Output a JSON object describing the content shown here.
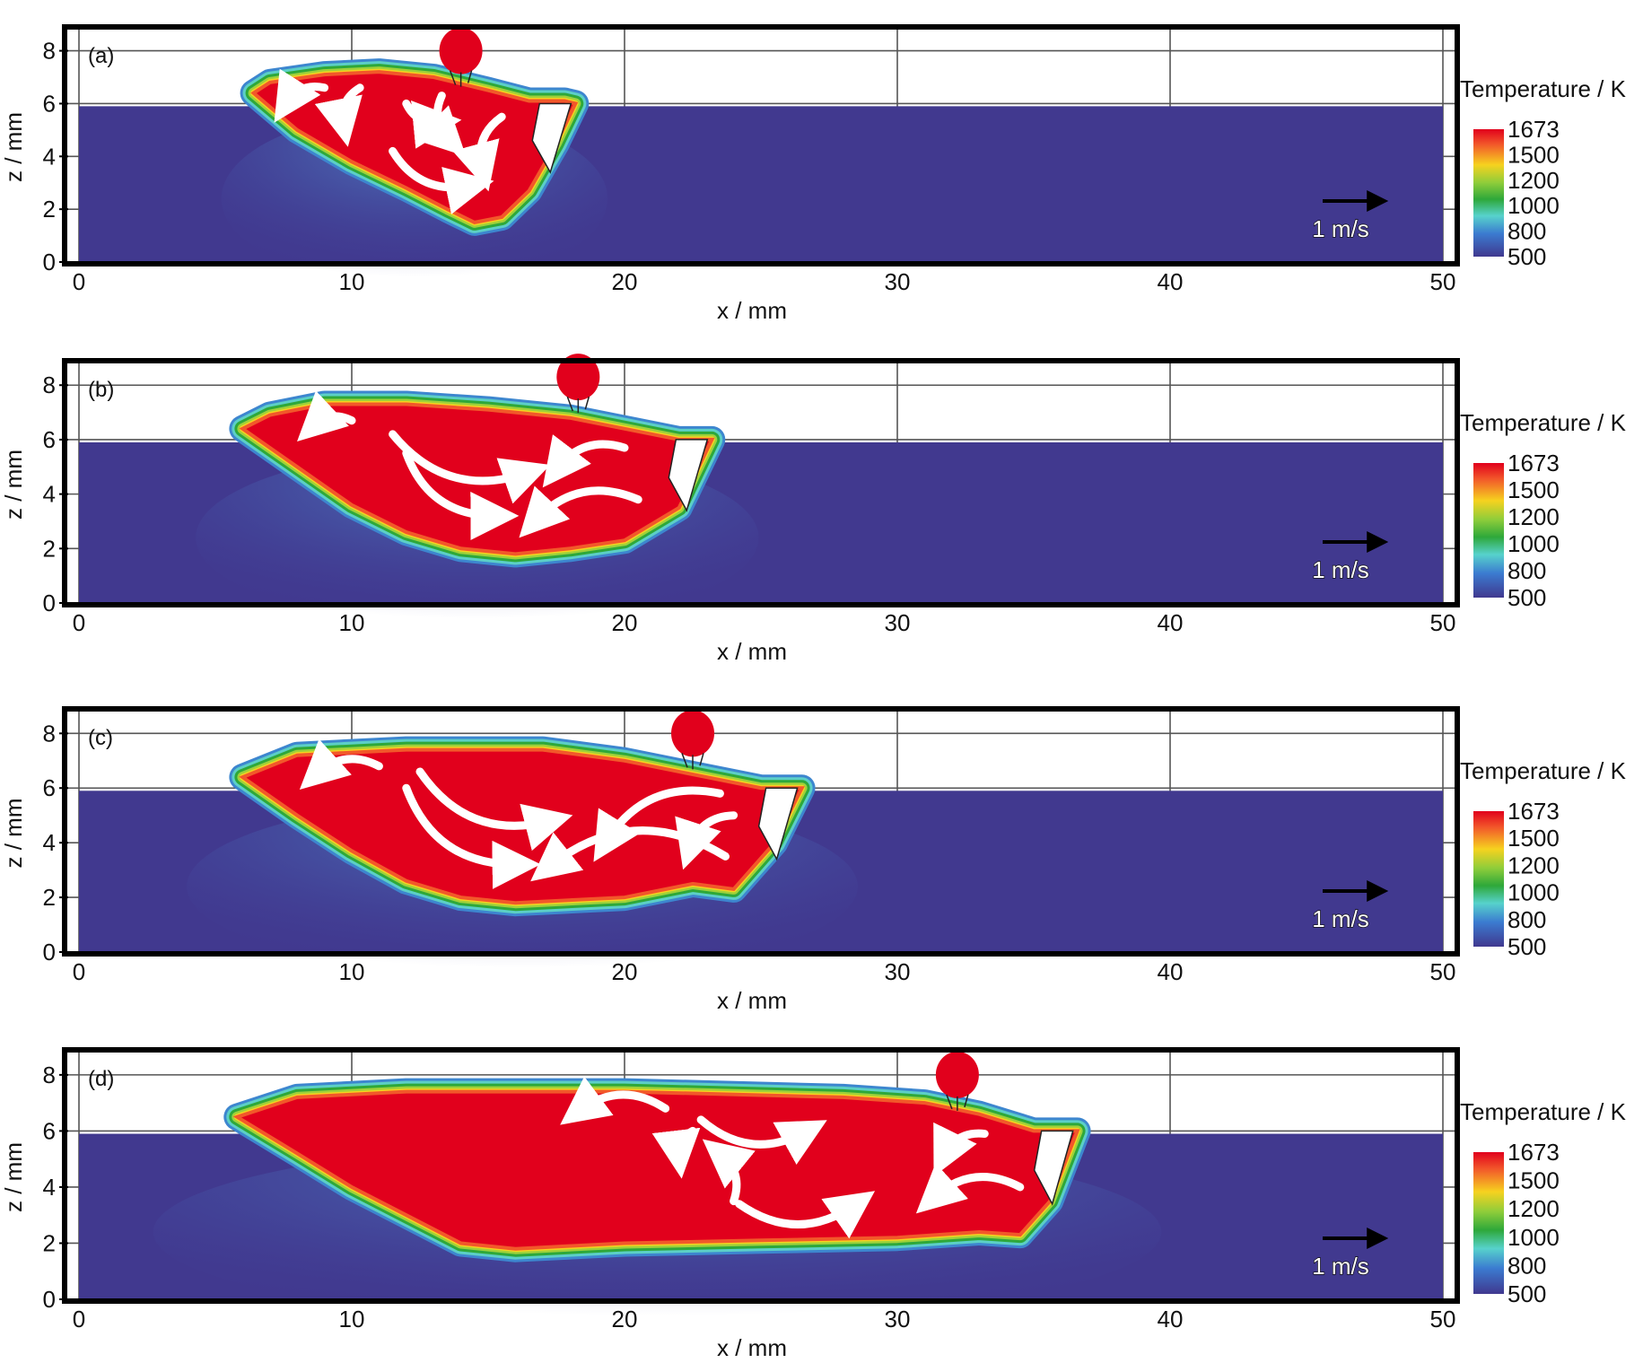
{
  "chart_data": [
    {
      "type": "heatmap",
      "panel_label": "(a)",
      "xlabel": "x / mm",
      "ylabel": "z / mm",
      "xlim": [
        0,
        50
      ],
      "ylim": [
        0,
        8.7
      ],
      "x_ticks": [
        "0",
        "10",
        "20",
        "30",
        "40",
        "50"
      ],
      "y_ticks": [
        "0",
        "2",
        "4",
        "6",
        "8"
      ],
      "grid": true,
      "colorbar": {
        "title": "Temperature / K",
        "ticks": [
          "1673",
          "1500",
          "1200",
          "1000",
          "800",
          "500"
        ]
      },
      "velocity_scale_label": "1 m/s",
      "substrate_level": 5.9,
      "pool_top": [
        [
          6.4,
          6.4
        ],
        [
          7,
          6.8
        ],
        [
          9,
          7.1
        ],
        [
          11,
          7.2
        ],
        [
          13,
          7.0
        ],
        [
          15,
          6.5
        ],
        [
          16.5,
          6.1
        ],
        [
          17.8,
          6.1
        ]
      ],
      "pool_bottom": [
        [
          6.4,
          6.4
        ],
        [
          8,
          5.0
        ],
        [
          10,
          3.8
        ],
        [
          12,
          2.8
        ],
        [
          13.5,
          2.0
        ],
        [
          14.5,
          1.5
        ],
        [
          15.5,
          1.7
        ],
        [
          16.5,
          2.7
        ],
        [
          17.5,
          4.5
        ],
        [
          18.2,
          6.0
        ]
      ],
      "droplet": {
        "x": 14.0,
        "z": 8.0
      },
      "arrows": [
        [
          [
            9,
            6.6
          ],
          [
            7.6,
            6.0
          ]
        ],
        [
          [
            10.3,
            6.6
          ],
          [
            9.7,
            5.2
          ]
        ],
        [
          [
            12,
            6.0
          ],
          [
            13.2,
            5.3
          ]
        ],
        [
          [
            13.3,
            6.3
          ],
          [
            13.6,
            4.6
          ]
        ],
        [
          [
            15.5,
            5.5
          ],
          [
            14.8,
            3.5
          ]
        ],
        [
          [
            11.5,
            4.2
          ],
          [
            14.4,
            2.9
          ]
        ]
      ]
    },
    {
      "type": "heatmap",
      "panel_label": "(b)",
      "xlabel": "x / mm",
      "ylabel": "z / mm",
      "xlim": [
        0,
        50
      ],
      "ylim": [
        0,
        8.7
      ],
      "x_ticks": [
        "0",
        "10",
        "20",
        "30",
        "40",
        "50"
      ],
      "y_ticks": [
        "0",
        "2",
        "4",
        "6",
        "8"
      ],
      "grid": true,
      "colorbar": {
        "title": "Temperature / K",
        "ticks": [
          "1673",
          "1500",
          "1200",
          "1000",
          "800",
          "500"
        ]
      },
      "velocity_scale_label": "1 m/s",
      "substrate_level": 5.9,
      "pool_top": [
        [
          6.0,
          6.4
        ],
        [
          7,
          6.9
        ],
        [
          9,
          7.3
        ],
        [
          12,
          7.3
        ],
        [
          15,
          7.1
        ],
        [
          18,
          6.8
        ],
        [
          20,
          6.4
        ],
        [
          22,
          6.0
        ],
        [
          23.2,
          6.0
        ]
      ],
      "pool_bottom": [
        [
          6.0,
          6.4
        ],
        [
          8,
          5.0
        ],
        [
          10,
          3.6
        ],
        [
          12,
          2.6
        ],
        [
          14,
          2.0
        ],
        [
          16,
          1.8
        ],
        [
          18,
          2.0
        ],
        [
          20,
          2.3
        ],
        [
          22,
          3.5
        ],
        [
          23.2,
          6.0
        ]
      ],
      "droplet": {
        "x": 18.3,
        "z": 8.3
      },
      "arrows": [
        [
          [
            10,
            6.7
          ],
          [
            8.6,
            6.5
          ]
        ],
        [
          [
            11.5,
            6.2
          ],
          [
            16.5,
            4.8
          ]
        ],
        [
          [
            12,
            5.5
          ],
          [
            15.3,
            3.2
          ]
        ],
        [
          [
            20,
            5.7
          ],
          [
            17.5,
            4.9
          ]
        ],
        [
          [
            20.5,
            3.8
          ],
          [
            16.7,
            3.0
          ]
        ]
      ]
    },
    {
      "type": "heatmap",
      "panel_label": "(c)",
      "xlabel": "x / mm",
      "ylabel": "z / mm",
      "xlim": [
        0,
        50
      ],
      "ylim": [
        0,
        8.7
      ],
      "x_ticks": [
        "0",
        "10",
        "20",
        "30",
        "40",
        "50"
      ],
      "y_ticks": [
        "0",
        "2",
        "4",
        "6",
        "8"
      ],
      "grid": true,
      "colorbar": {
        "title": "Temperature / K",
        "ticks": [
          "1673",
          "1500",
          "1200",
          "1000",
          "800",
          "500"
        ]
      },
      "velocity_scale_label": "1 m/s",
      "substrate_level": 5.9,
      "pool_top": [
        [
          6.0,
          6.4
        ],
        [
          8,
          7.2
        ],
        [
          12,
          7.4
        ],
        [
          17,
          7.4
        ],
        [
          20,
          7.0
        ],
        [
          23,
          6.4
        ],
        [
          25,
          6.0
        ],
        [
          26.5,
          6.0
        ]
      ],
      "pool_bottom": [
        [
          6.0,
          6.4
        ],
        [
          8,
          5.0
        ],
        [
          10,
          3.7
        ],
        [
          12,
          2.6
        ],
        [
          14,
          2.0
        ],
        [
          16,
          1.8
        ],
        [
          20,
          2.0
        ],
        [
          22.5,
          2.5
        ],
        [
          24,
          2.3
        ],
        [
          25.5,
          4.0
        ],
        [
          26.5,
          6.0
        ]
      ],
      "droplet": {
        "x": 22.5,
        "z": 8.0
      },
      "arrows": [
        [
          [
            11,
            6.8
          ],
          [
            8.7,
            6.5
          ]
        ],
        [
          [
            12.5,
            6.6
          ],
          [
            17.3,
            4.8
          ]
        ],
        [
          [
            12,
            6.0
          ],
          [
            16.1,
            3.2
          ]
        ],
        [
          [
            23.5,
            5.8
          ],
          [
            19.3,
            4.0
          ]
        ],
        [
          [
            24,
            5.0
          ],
          [
            22.4,
            3.8
          ]
        ],
        [
          [
            23.7,
            3.5
          ],
          [
            17.2,
            3.1
          ]
        ]
      ]
    },
    {
      "type": "heatmap",
      "panel_label": "(d)",
      "xlabel": "x / mm",
      "ylabel": "z / mm",
      "xlim": [
        0,
        50
      ],
      "ylim": [
        0,
        8.7
      ],
      "x_ticks": [
        "0",
        "10",
        "20",
        "30",
        "40",
        "50"
      ],
      "y_ticks": [
        "0",
        "2",
        "4",
        "6",
        "8"
      ],
      "grid": true,
      "colorbar": {
        "title": "Temperature / K",
        "ticks": [
          "1673",
          "1500",
          "1200",
          "1000",
          "800",
          "500"
        ]
      },
      "velocity_scale_label": "1 m/s",
      "substrate_level": 5.9,
      "pool_top": [
        [
          5.8,
          6.5
        ],
        [
          8,
          7.2
        ],
        [
          12,
          7.4
        ],
        [
          20,
          7.4
        ],
        [
          28,
          7.2
        ],
        [
          31,
          7.0
        ],
        [
          33,
          6.6
        ],
        [
          35,
          6.0
        ],
        [
          36.6,
          6.0
        ]
      ],
      "pool_bottom": [
        [
          5.8,
          6.5
        ],
        [
          8,
          5.2
        ],
        [
          10,
          4.0
        ],
        [
          12,
          3.0
        ],
        [
          14,
          2.0
        ],
        [
          16,
          1.8
        ],
        [
          20,
          2.0
        ],
        [
          25,
          2.1
        ],
        [
          30,
          2.2
        ],
        [
          33,
          2.4
        ],
        [
          34.5,
          2.3
        ],
        [
          35.6,
          3.5
        ],
        [
          36.6,
          6.0
        ]
      ],
      "droplet": {
        "x": 32.2,
        "z": 8.0
      },
      "arrows": [
        [
          [
            21.5,
            6.8
          ],
          [
            18.3,
            6.7
          ]
        ],
        [
          [
            22.5,
            6.0
          ],
          [
            22.0,
            5.1
          ]
        ],
        [
          [
            22.8,
            6.4
          ],
          [
            26.7,
            6.0
          ]
        ],
        [
          [
            24,
            3.5
          ],
          [
            23.5,
            5.2
          ]
        ],
        [
          [
            24.2,
            3.4
          ],
          [
            28.5,
            3.4
          ]
        ],
        [
          [
            33.2,
            5.9
          ],
          [
            31.7,
            5.1
          ]
        ],
        [
          [
            34.5,
            4.0
          ],
          [
            31.3,
            3.6
          ]
        ]
      ]
    }
  ]
}
